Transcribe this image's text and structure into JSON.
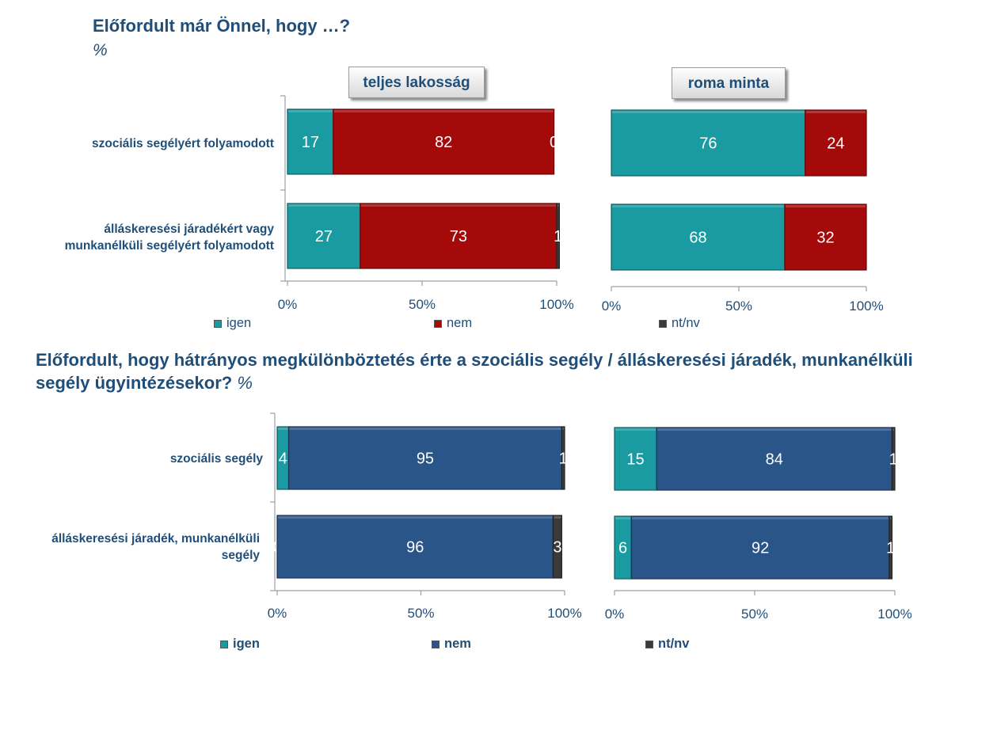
{
  "chart_data": [
    {
      "type": "bar",
      "orientation": "horizontal-stacked",
      "title": "Előfordult már Önnel, hogy …?",
      "unit": "%",
      "categories": [
        "szociális segélyért folyamodott",
        "álláskeresési járadékért vagy munkanélküli segélyért folyamodott"
      ],
      "panels": [
        {
          "label": "teljes lakosság",
          "series": [
            {
              "name": "igen",
              "values": [
                17,
                27
              ]
            },
            {
              "name": "nem",
              "values": [
                82,
                73
              ]
            },
            {
              "name": "nt/nv",
              "values": [
                0,
                1
              ]
            }
          ]
        },
        {
          "label": "roma minta",
          "series": [
            {
              "name": "igen",
              "values": [
                76,
                68
              ]
            },
            {
              "name": "nem",
              "values": [
                24,
                32
              ]
            },
            {
              "name": "nt/nv",
              "values": [
                0,
                0
              ]
            }
          ]
        }
      ],
      "xlim": [
        0,
        100
      ],
      "xticks": [
        "0%",
        "50%",
        "100%"
      ],
      "colors": {
        "igen": "#1a9ba1",
        "nem": "#a50a0a",
        "nt/nv": "#3a3a3a"
      },
      "legend_position": "bottom"
    },
    {
      "type": "bar",
      "orientation": "horizontal-stacked",
      "title": "Előfordult, hogy hátrányos megkülönböztetés érte a szociális segély / álláskeresési járadék, munkanélküli segély ügyintézésekor?",
      "unit": "%",
      "categories": [
        "szociális segély",
        "álláskeresési járadék, munkanélküli segély"
      ],
      "panels": [
        {
          "series": [
            {
              "name": "igen",
              "values": [
                4,
                0
              ]
            },
            {
              "name": "nem",
              "values": [
                95,
                96
              ]
            },
            {
              "name": "nt/nv",
              "values": [
                1,
                3
              ]
            }
          ]
        },
        {
          "series": [
            {
              "name": "igen",
              "values": [
                15,
                6
              ]
            },
            {
              "name": "nem",
              "values": [
                84,
                92
              ]
            },
            {
              "name": "nt/nv",
              "values": [
                1,
                1
              ]
            }
          ]
        }
      ],
      "xlim": [
        0,
        100
      ],
      "xticks": [
        "0%",
        "50%",
        "100%"
      ],
      "colors": {
        "igen": "#1a9ba1",
        "nem": "#2a5589",
        "nt/nv": "#3a3a3a"
      },
      "legend_position": "bottom"
    }
  ]
}
